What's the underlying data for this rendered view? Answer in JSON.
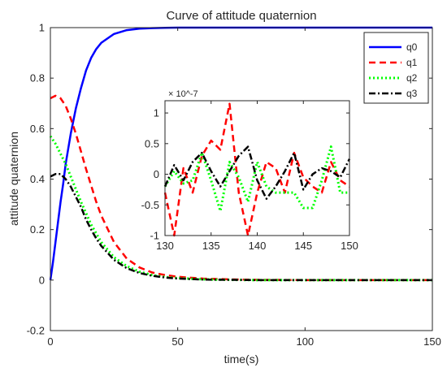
{
  "colors": {
    "q0": "#0000ff",
    "q1": "#ff0000",
    "q2": "#00ff00",
    "q3": "#000000",
    "axis": "#262626",
    "background": "#ffffff"
  },
  "chart_data": [
    {
      "type": "line",
      "title": "Curve of attitude quaternion",
      "xlabel": "time(s)",
      "ylabel": "attitude quaternion",
      "xlim": [
        0,
        150
      ],
      "ylim": [
        -0.2,
        1
      ],
      "xticks": [
        0,
        50,
        100,
        150
      ],
      "xtick_labels": [
        "0",
        "50",
        "100",
        "150"
      ],
      "yticks": [
        -0.2,
        0,
        0.2,
        0.4,
        0.6,
        0.8,
        1
      ],
      "ytick_labels": [
        "-0.2",
        "0",
        "0.2",
        "0.4",
        "0.6",
        "0.8",
        "1"
      ],
      "grid": false,
      "legend_position": "top-right",
      "series": [
        {
          "name": "q0",
          "style": "solid",
          "color": "#0000ff",
          "x": [
            0,
            1,
            2,
            3,
            4,
            5,
            6,
            8,
            10,
            12,
            14,
            16,
            18,
            20,
            25,
            30,
            35,
            40,
            45,
            50,
            60,
            80,
            100,
            150
          ],
          "y": [
            0,
            0.07,
            0.15,
            0.23,
            0.31,
            0.38,
            0.46,
            0.58,
            0.68,
            0.76,
            0.83,
            0.88,
            0.915,
            0.94,
            0.975,
            0.99,
            0.996,
            0.998,
            0.999,
            1,
            1,
            1,
            1,
            1
          ]
        },
        {
          "name": "q1",
          "style": "dashed",
          "color": "#ff0000",
          "x": [
            0,
            2,
            4,
            6,
            8,
            10,
            12,
            14,
            16,
            18,
            20,
            25,
            30,
            35,
            40,
            45,
            50,
            60,
            70,
            80,
            100,
            150
          ],
          "y": [
            0.72,
            0.73,
            0.72,
            0.69,
            0.64,
            0.58,
            0.51,
            0.44,
            0.375,
            0.31,
            0.255,
            0.15,
            0.085,
            0.05,
            0.03,
            0.02,
            0.013,
            0.006,
            0.003,
            0.001,
            0,
            0
          ]
        },
        {
          "name": "q2",
          "style": "dotted",
          "color": "#00ff00",
          "x": [
            0,
            2,
            4,
            6,
            8,
            10,
            12,
            14,
            16,
            18,
            20,
            25,
            30,
            35,
            40,
            45,
            50,
            60,
            70,
            80,
            100,
            150
          ],
          "y": [
            0.57,
            0.54,
            0.5,
            0.46,
            0.41,
            0.36,
            0.31,
            0.265,
            0.22,
            0.185,
            0.15,
            0.09,
            0.055,
            0.033,
            0.02,
            0.012,
            0.008,
            0.003,
            0.001,
            0,
            0,
            0
          ]
        },
        {
          "name": "q3",
          "style": "dashdot",
          "color": "#000000",
          "x": [
            0,
            2,
            4,
            6,
            8,
            10,
            12,
            14,
            16,
            18,
            20,
            25,
            30,
            35,
            40,
            45,
            50,
            60,
            70,
            80,
            100,
            150
          ],
          "y": [
            0.41,
            0.42,
            0.42,
            0.4,
            0.37,
            0.33,
            0.29,
            0.24,
            0.2,
            0.165,
            0.135,
            0.08,
            0.047,
            0.028,
            0.017,
            0.01,
            0.006,
            0.002,
            0.001,
            0,
            0,
            0
          ]
        }
      ]
    },
    {
      "type": "line",
      "title": "",
      "xlabel": "",
      "ylabel": "",
      "y_exponent_label": "× 10^-7",
      "xlim": [
        130,
        150
      ],
      "ylim": [
        -1,
        1.2
      ],
      "xticks": [
        130,
        135,
        140,
        145,
        150
      ],
      "xtick_labels": [
        "130",
        "135",
        "140",
        "145",
        "150"
      ],
      "yticks": [
        -1,
        -0.5,
        0,
        0.5,
        1
      ],
      "ytick_labels": [
        "-1",
        "-0.5",
        "0",
        "0.5",
        "1"
      ],
      "grid": false,
      "series": [
        {
          "name": "q1",
          "style": "dashed",
          "color": "#ff0000",
          "x": [
            130,
            131,
            132,
            133,
            134,
            135,
            136,
            137,
            138,
            139,
            140,
            141,
            142,
            143,
            144,
            145,
            146,
            147,
            148,
            149,
            150
          ],
          "y": [
            -0.3,
            -1.0,
            0.1,
            -0.3,
            0.3,
            0.55,
            0.4,
            1.15,
            -0.3,
            -1.0,
            -0.3,
            0.2,
            0.1,
            -0.3,
            0.35,
            -0.05,
            -0.2,
            -0.3,
            0.2,
            -0.1,
            -0.2
          ]
        },
        {
          "name": "q2",
          "style": "dotted",
          "color": "#00ff00",
          "x": [
            130,
            131,
            132,
            133,
            134,
            135,
            136,
            137,
            138,
            139,
            140,
            141,
            142,
            143,
            144,
            145,
            146,
            147,
            148,
            149,
            150
          ],
          "y": [
            -0.2,
            0.05,
            -0.15,
            -0.1,
            0.35,
            -0.1,
            -0.6,
            0.2,
            -0.05,
            -0.45,
            0.2,
            -0.2,
            -0.3,
            -0.3,
            -0.3,
            -0.55,
            -0.55,
            -0.1,
            0.45,
            -0.3,
            -0.3
          ]
        },
        {
          "name": "q3",
          "style": "dashdot",
          "color": "#000000",
          "x": [
            130,
            131,
            132,
            133,
            134,
            135,
            136,
            137,
            138,
            139,
            140,
            141,
            142,
            143,
            144,
            145,
            146,
            147,
            148,
            149,
            150
          ],
          "y": [
            -0.2,
            0.15,
            -0.1,
            0.2,
            0.35,
            0.05,
            -0.2,
            0.05,
            0.3,
            0.45,
            -0.1,
            -0.4,
            -0.2,
            0.05,
            0.35,
            -0.25,
            0.0,
            0.1,
            0.05,
            -0.05,
            0.25
          ]
        }
      ]
    }
  ]
}
